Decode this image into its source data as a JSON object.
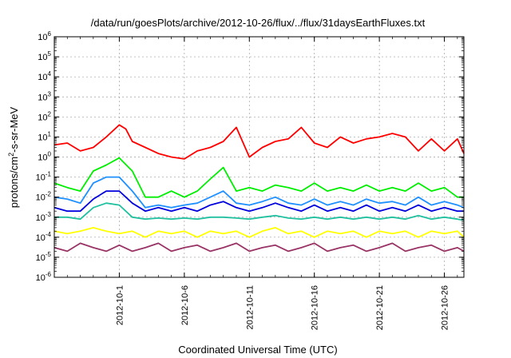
{
  "chart_data": {
    "type": "line",
    "title": "/data/run/goesPlots/archive/2012-10-26/flux/../flux/31daysEarthFluxes.txt",
    "xlabel": "Coordinated Universal Time (UTC)",
    "ylabel_parts": {
      "base": "protons/cm",
      "sup": "2",
      "rest": "-s-sr-MeV"
    },
    "x_axis_type": "date",
    "xlim": [
      "2012-09-26",
      "2012-10-27T12:00"
    ],
    "x_ticks": [
      {
        "date": "2012-10-01",
        "label": "2012-10-1"
      },
      {
        "date": "2012-10-06",
        "label": "2012-10-6"
      },
      {
        "date": "2012-10-11",
        "label": "2012-10-11"
      },
      {
        "date": "2012-10-16",
        "label": "2012-10-16"
      },
      {
        "date": "2012-10-21",
        "label": "2012-10-21"
      },
      {
        "date": "2012-10-26",
        "label": "2012-10-26"
      }
    ],
    "y_scale": "log",
    "ylim": [
      1e-06,
      1000000.0
    ],
    "y_ticks": [
      {
        "value": 1e-06,
        "base": "10",
        "exp": "-6"
      },
      {
        "value": 1e-05,
        "base": "10",
        "exp": "-5"
      },
      {
        "value": 0.0001,
        "base": "10",
        "exp": "-4"
      },
      {
        "value": 0.001,
        "base": "10",
        "exp": "-3"
      },
      {
        "value": 0.01,
        "base": "10",
        "exp": "-2"
      },
      {
        "value": 0.1,
        "base": "10",
        "exp": "-1"
      },
      {
        "value": 1.0,
        "base": "10",
        "exp": "0"
      },
      {
        "value": 10.0,
        "base": "10",
        "exp": "1"
      },
      {
        "value": 100.0,
        "base": "10",
        "exp": "2"
      },
      {
        "value": 1000.0,
        "base": "10",
        "exp": "3"
      },
      {
        "value": 10000.0,
        "base": "10",
        "exp": "4"
      },
      {
        "value": 100000.0,
        "base": "10",
        "exp": "5"
      },
      {
        "value": 1000000.0,
        "base": "10",
        "exp": "6"
      }
    ],
    "grid": true,
    "legend": "none",
    "series": [
      {
        "color": "#ff0000",
        "y": [
          [
            "2012-09-26",
            4
          ],
          [
            "2012-09-27",
            5
          ],
          [
            "2012-09-28",
            2
          ],
          [
            "2012-09-29",
            3
          ],
          [
            "2012-09-30",
            10
          ],
          [
            "2012-10-01",
            40
          ],
          [
            "2012-10-01T12:00",
            25
          ],
          [
            "2012-10-02",
            6
          ],
          [
            "2012-10-03",
            3
          ],
          [
            "2012-10-04",
            1.5
          ],
          [
            "2012-10-05",
            1
          ],
          [
            "2012-10-06",
            0.8
          ],
          [
            "2012-10-07",
            2
          ],
          [
            "2012-10-08",
            3
          ],
          [
            "2012-10-09",
            6
          ],
          [
            "2012-10-10",
            30
          ],
          [
            "2012-10-11",
            1
          ],
          [
            "2012-10-12",
            3
          ],
          [
            "2012-10-13",
            6
          ],
          [
            "2012-10-14",
            8
          ],
          [
            "2012-10-15",
            30
          ],
          [
            "2012-10-16",
            5
          ],
          [
            "2012-10-17",
            3
          ],
          [
            "2012-10-18",
            10
          ],
          [
            "2012-10-19",
            5
          ],
          [
            "2012-10-20",
            8
          ],
          [
            "2012-10-21",
            10
          ],
          [
            "2012-10-22",
            15
          ],
          [
            "2012-10-23",
            10
          ],
          [
            "2012-10-24",
            2
          ],
          [
            "2012-10-25",
            8
          ],
          [
            "2012-10-26",
            2
          ],
          [
            "2012-10-27",
            8
          ],
          [
            "2012-10-27T12:00",
            1.5
          ]
        ]
      },
      {
        "color": "#00ee00",
        "y": [
          [
            "2012-09-26",
            0.05
          ],
          [
            "2012-09-27",
            0.03
          ],
          [
            "2012-09-28",
            0.02
          ],
          [
            "2012-09-29",
            0.2
          ],
          [
            "2012-09-30",
            0.4
          ],
          [
            "2012-10-01",
            0.9
          ],
          [
            "2012-10-02",
            0.2
          ],
          [
            "2012-10-03",
            0.01
          ],
          [
            "2012-10-04",
            0.01
          ],
          [
            "2012-10-05",
            0.02
          ],
          [
            "2012-10-06",
            0.01
          ],
          [
            "2012-10-07",
            0.02
          ],
          [
            "2012-10-08",
            0.08
          ],
          [
            "2012-10-09",
            0.3
          ],
          [
            "2012-10-10",
            0.02
          ],
          [
            "2012-10-11",
            0.03
          ],
          [
            "2012-10-12",
            0.02
          ],
          [
            "2012-10-13",
            0.04
          ],
          [
            "2012-10-14",
            0.03
          ],
          [
            "2012-10-15",
            0.02
          ],
          [
            "2012-10-16",
            0.05
          ],
          [
            "2012-10-17",
            0.02
          ],
          [
            "2012-10-18",
            0.03
          ],
          [
            "2012-10-19",
            0.02
          ],
          [
            "2012-10-20",
            0.04
          ],
          [
            "2012-10-21",
            0.02
          ],
          [
            "2012-10-22",
            0.03
          ],
          [
            "2012-10-23",
            0.02
          ],
          [
            "2012-10-24",
            0.05
          ],
          [
            "2012-10-25",
            0.02
          ],
          [
            "2012-10-26",
            0.03
          ],
          [
            "2012-10-27",
            0.01
          ],
          [
            "2012-10-27T12:00",
            0.01
          ]
        ]
      },
      {
        "color": "#1e90ff",
        "y": [
          [
            "2012-09-26",
            0.01
          ],
          [
            "2012-09-27",
            0.008
          ],
          [
            "2012-09-28",
            0.005
          ],
          [
            "2012-09-29",
            0.05
          ],
          [
            "2012-09-30",
            0.1
          ],
          [
            "2012-10-01",
            0.1
          ],
          [
            "2012-10-02",
            0.02
          ],
          [
            "2012-10-03",
            0.003
          ],
          [
            "2012-10-04",
            0.004
          ],
          [
            "2012-10-05",
            0.003
          ],
          [
            "2012-10-06",
            0.004
          ],
          [
            "2012-10-07",
            0.005
          ],
          [
            "2012-10-08",
            0.01
          ],
          [
            "2012-10-09",
            0.02
          ],
          [
            "2012-10-10",
            0.005
          ],
          [
            "2012-10-11",
            0.004
          ],
          [
            "2012-10-12",
            0.006
          ],
          [
            "2012-10-13",
            0.01
          ],
          [
            "2012-10-14",
            0.005
          ],
          [
            "2012-10-15",
            0.004
          ],
          [
            "2012-10-16",
            0.008
          ],
          [
            "2012-10-17",
            0.004
          ],
          [
            "2012-10-18",
            0.006
          ],
          [
            "2012-10-19",
            0.004
          ],
          [
            "2012-10-20",
            0.008
          ],
          [
            "2012-10-21",
            0.005
          ],
          [
            "2012-10-22",
            0.006
          ],
          [
            "2012-10-23",
            0.004
          ],
          [
            "2012-10-24",
            0.01
          ],
          [
            "2012-10-25",
            0.004
          ],
          [
            "2012-10-26",
            0.006
          ],
          [
            "2012-10-27",
            0.004
          ],
          [
            "2012-10-27T12:00",
            0.003
          ]
        ]
      },
      {
        "color": "#0000dd",
        "y": [
          [
            "2012-09-26",
            0.003
          ],
          [
            "2012-09-27",
            0.002
          ],
          [
            "2012-09-28",
            0.002
          ],
          [
            "2012-09-29",
            0.008
          ],
          [
            "2012-09-30",
            0.02
          ],
          [
            "2012-10-01",
            0.02
          ],
          [
            "2012-10-02",
            0.005
          ],
          [
            "2012-10-03",
            0.002
          ],
          [
            "2012-10-04",
            0.003
          ],
          [
            "2012-10-05",
            0.002
          ],
          [
            "2012-10-06",
            0.003
          ],
          [
            "2012-10-07",
            0.002
          ],
          [
            "2012-10-08",
            0.004
          ],
          [
            "2012-10-09",
            0.006
          ],
          [
            "2012-10-10",
            0.003
          ],
          [
            "2012-10-11",
            0.002
          ],
          [
            "2012-10-12",
            0.003
          ],
          [
            "2012-10-13",
            0.005
          ],
          [
            "2012-10-14",
            0.003
          ],
          [
            "2012-10-15",
            0.002
          ],
          [
            "2012-10-16",
            0.004
          ],
          [
            "2012-10-17",
            0.002
          ],
          [
            "2012-10-18",
            0.003
          ],
          [
            "2012-10-19",
            0.002
          ],
          [
            "2012-10-20",
            0.004
          ],
          [
            "2012-10-21",
            0.002
          ],
          [
            "2012-10-22",
            0.003
          ],
          [
            "2012-10-23",
            0.002
          ],
          [
            "2012-10-24",
            0.004
          ],
          [
            "2012-10-25",
            0.002
          ],
          [
            "2012-10-26",
            0.003
          ],
          [
            "2012-10-27",
            0.002
          ],
          [
            "2012-10-27T12:00",
            0.002
          ]
        ]
      },
      {
        "color": "#20c0a0",
        "y": [
          [
            "2012-09-26",
            0.001
          ],
          [
            "2012-09-27",
            0.001
          ],
          [
            "2012-09-28",
            0.0008
          ],
          [
            "2012-09-29",
            0.003
          ],
          [
            "2012-09-30",
            0.005
          ],
          [
            "2012-10-01",
            0.004
          ],
          [
            "2012-10-02",
            0.001
          ],
          [
            "2012-10-03",
            0.0008
          ],
          [
            "2012-10-04",
            0.0009
          ],
          [
            "2012-10-05",
            0.0008
          ],
          [
            "2012-10-06",
            0.0009
          ],
          [
            "2012-10-07",
            0.0008
          ],
          [
            "2012-10-08",
            0.001
          ],
          [
            "2012-10-09",
            0.001
          ],
          [
            "2012-10-10",
            0.0009
          ],
          [
            "2012-10-11",
            0.0008
          ],
          [
            "2012-10-12",
            0.001
          ],
          [
            "2012-10-13",
            0.0012
          ],
          [
            "2012-10-14",
            0.0009
          ],
          [
            "2012-10-15",
            0.0008
          ],
          [
            "2012-10-16",
            0.001
          ],
          [
            "2012-10-17",
            0.0008
          ],
          [
            "2012-10-18",
            0.001
          ],
          [
            "2012-10-19",
            0.0008
          ],
          [
            "2012-10-20",
            0.001
          ],
          [
            "2012-10-21",
            0.0008
          ],
          [
            "2012-10-22",
            0.001
          ],
          [
            "2012-10-23",
            0.0008
          ],
          [
            "2012-10-24",
            0.0012
          ],
          [
            "2012-10-25",
            0.0008
          ],
          [
            "2012-10-26",
            0.001
          ],
          [
            "2012-10-27",
            0.0008
          ],
          [
            "2012-10-27T12:00",
            0.0007
          ]
        ]
      },
      {
        "color": "#ffff00",
        "y": [
          [
            "2012-09-26",
            0.0002
          ],
          [
            "2012-09-27",
            0.00015
          ],
          [
            "2012-09-28",
            0.0002
          ],
          [
            "2012-09-29",
            0.0003
          ],
          [
            "2012-09-30",
            0.0002
          ],
          [
            "2012-10-01",
            0.00015
          ],
          [
            "2012-10-02",
            0.0002
          ],
          [
            "2012-10-03",
            0.0001
          ],
          [
            "2012-10-04",
            0.0002
          ],
          [
            "2012-10-05",
            0.00015
          ],
          [
            "2012-10-06",
            0.0002
          ],
          [
            "2012-10-07",
            0.0001
          ],
          [
            "2012-10-08",
            0.0002
          ],
          [
            "2012-10-09",
            0.00015
          ],
          [
            "2012-10-10",
            0.0002
          ],
          [
            "2012-10-11",
            0.0001
          ],
          [
            "2012-10-12",
            0.0002
          ],
          [
            "2012-10-13",
            0.0003
          ],
          [
            "2012-10-14",
            0.00015
          ],
          [
            "2012-10-15",
            0.0002
          ],
          [
            "2012-10-16",
            0.0001
          ],
          [
            "2012-10-17",
            0.0002
          ],
          [
            "2012-10-18",
            0.00015
          ],
          [
            "2012-10-19",
            0.0002
          ],
          [
            "2012-10-20",
            0.0001
          ],
          [
            "2012-10-21",
            0.0002
          ],
          [
            "2012-10-22",
            0.00015
          ],
          [
            "2012-10-23",
            0.0002
          ],
          [
            "2012-10-24",
            0.0001
          ],
          [
            "2012-10-25",
            0.0002
          ],
          [
            "2012-10-26",
            0.00015
          ],
          [
            "2012-10-27",
            0.0002
          ],
          [
            "2012-10-27T12:00",
            0.0001
          ]
        ]
      },
      {
        "color": "#993366",
        "y": [
          [
            "2012-09-26",
            3e-05
          ],
          [
            "2012-09-27",
            2e-05
          ],
          [
            "2012-09-28",
            5e-05
          ],
          [
            "2012-09-29",
            3e-05
          ],
          [
            "2012-09-30",
            2e-05
          ],
          [
            "2012-10-01",
            4e-05
          ],
          [
            "2012-10-02",
            2e-05
          ],
          [
            "2012-10-03",
            3e-05
          ],
          [
            "2012-10-04",
            5e-05
          ],
          [
            "2012-10-05",
            2e-05
          ],
          [
            "2012-10-06",
            3e-05
          ],
          [
            "2012-10-07",
            4e-05
          ],
          [
            "2012-10-08",
            2e-05
          ],
          [
            "2012-10-09",
            3e-05
          ],
          [
            "2012-10-10",
            5e-05
          ],
          [
            "2012-10-11",
            2e-05
          ],
          [
            "2012-10-12",
            3e-05
          ],
          [
            "2012-10-13",
            4e-05
          ],
          [
            "2012-10-14",
            2e-05
          ],
          [
            "2012-10-15",
            3e-05
          ],
          [
            "2012-10-16",
            5e-05
          ],
          [
            "2012-10-17",
            2e-05
          ],
          [
            "2012-10-18",
            3e-05
          ],
          [
            "2012-10-19",
            4e-05
          ],
          [
            "2012-10-20",
            2e-05
          ],
          [
            "2012-10-21",
            3e-05
          ],
          [
            "2012-10-22",
            5e-05
          ],
          [
            "2012-10-23",
            2e-05
          ],
          [
            "2012-10-24",
            3e-05
          ],
          [
            "2012-10-25",
            4e-05
          ],
          [
            "2012-10-26",
            2e-05
          ],
          [
            "2012-10-27",
            3e-05
          ],
          [
            "2012-10-27T12:00",
            2e-05
          ]
        ]
      }
    ]
  }
}
